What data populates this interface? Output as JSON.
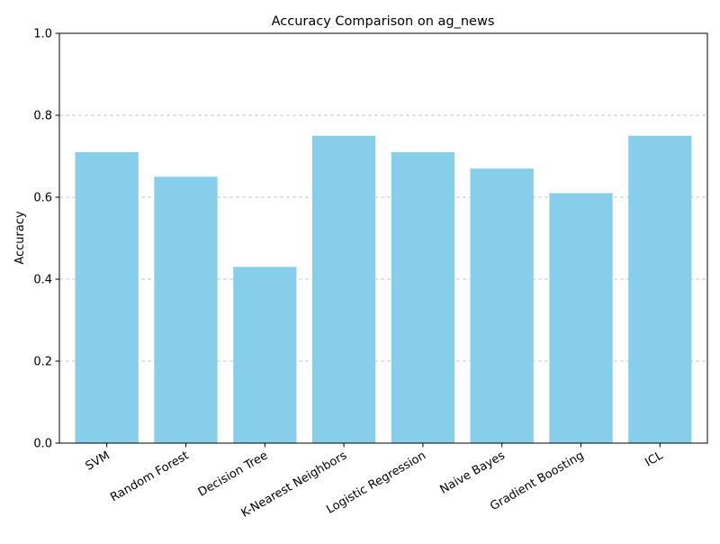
{
  "chart_data": {
    "type": "bar",
    "title": "Accuracy Comparison on ag_news",
    "xlabel": "",
    "ylabel": "Accuracy",
    "ylim": [
      0,
      1.0
    ],
    "yticks": [
      0.0,
      0.2,
      0.4,
      0.6,
      0.8,
      1.0
    ],
    "ytick_labels": [
      "0.0",
      "0.2",
      "0.4",
      "0.6",
      "0.8",
      "1.0"
    ],
    "categories": [
      "SVM",
      "Random Forest",
      "Decision Tree",
      "K-Nearest Neighbors",
      "Logistic Regression",
      "Naive Bayes",
      "Gradient Boosting",
      "ICL"
    ],
    "values": [
      0.71,
      0.65,
      0.43,
      0.75,
      0.71,
      0.67,
      0.61,
      0.75
    ],
    "bar_color": "#87ceeb",
    "grid": "y-dashed",
    "legend": "none"
  }
}
